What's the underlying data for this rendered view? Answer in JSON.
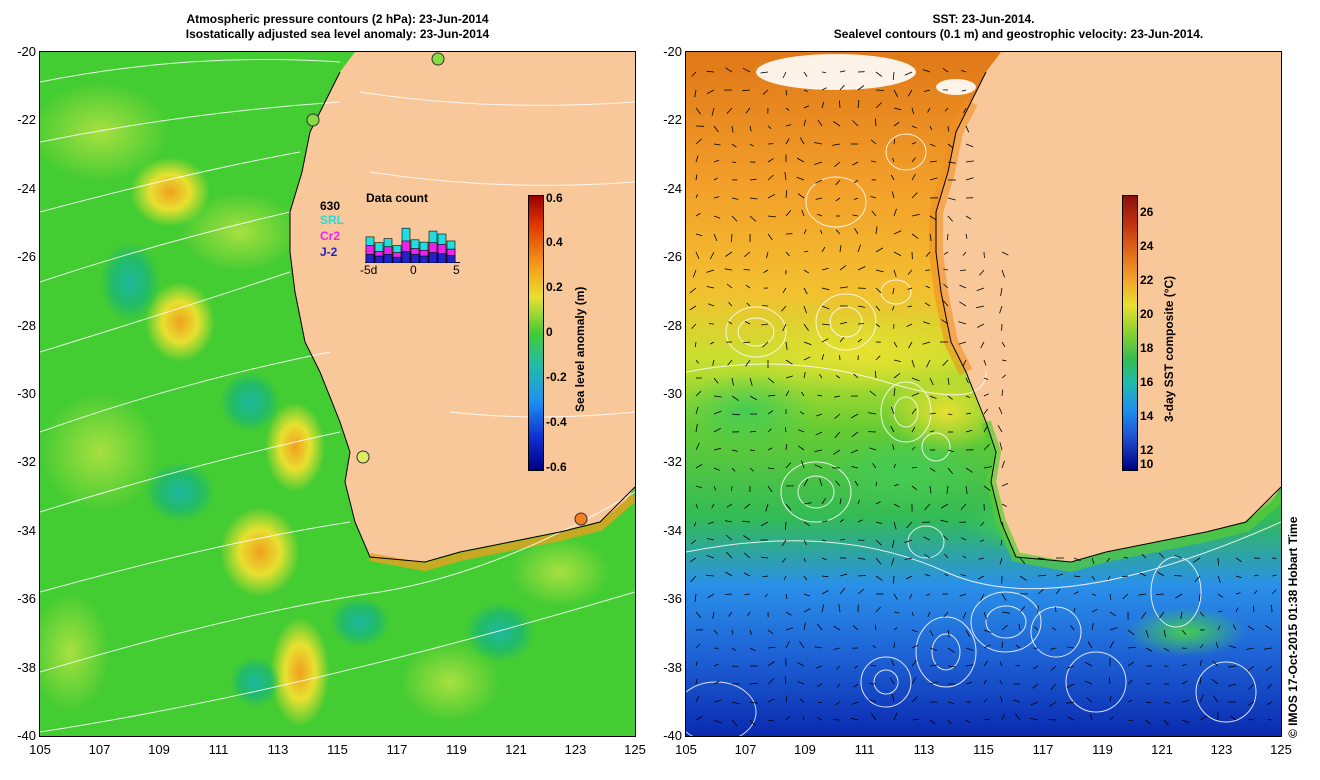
{
  "left": {
    "title_line1": "Atmospheric pressure contours (2 hPa): 23-Jun-2014",
    "title_line2": "Isostatically adjusted sea level anomaly: 23-Jun-2014",
    "colorbar": {
      "label": "Sea level anomaly (m)",
      "ticks": [
        "0.6",
        "0.4",
        "0.2",
        "0",
        "-0.2",
        "-0.4",
        "-0.6"
      ]
    },
    "inset": {
      "count": "630",
      "title": "Data count",
      "sources": [
        "SRL",
        "Cr2",
        "J-2"
      ],
      "xticks": [
        "-5d",
        "0",
        "5"
      ],
      "bars": [
        {
          "srl": 0.45,
          "cr2": 0.3,
          "j2": 0.15
        },
        {
          "srl": 0.35,
          "cr2": 0.2,
          "j2": 0.12
        },
        {
          "srl": 0.42,
          "cr2": 0.28,
          "j2": 0.15
        },
        {
          "srl": 0.3,
          "cr2": 0.18,
          "j2": 0.1
        },
        {
          "srl": 0.6,
          "cr2": 0.38,
          "j2": 0.2
        },
        {
          "srl": 0.4,
          "cr2": 0.25,
          "j2": 0.15
        },
        {
          "srl": 0.36,
          "cr2": 0.22,
          "j2": 0.12
        },
        {
          "srl": 0.55,
          "cr2": 0.35,
          "j2": 0.18
        },
        {
          "srl": 0.5,
          "cr2": 0.32,
          "j2": 0.16
        },
        {
          "srl": 0.38,
          "cr2": 0.24,
          "j2": 0.13
        }
      ]
    }
  },
  "right": {
    "title_line1": "SST: 23-Jun-2014.",
    "title_line2": "Sealevel contours (0.1 m) and geostrophic velocity: 23-Jun-2014.",
    "colorbar": {
      "label": "3-day SST composite (°C)",
      "ticks": [
        "26",
        "24",
        "22",
        "20",
        "18",
        "16",
        "14",
        "12",
        "10"
      ]
    }
  },
  "axes": {
    "y_ticks": [
      "-20",
      "-22",
      "-24",
      "-26",
      "-28",
      "-30",
      "-32",
      "-34",
      "-36",
      "-38",
      "-40"
    ],
    "x_ticks": [
      "105",
      "107",
      "109",
      "111",
      "113",
      "115",
      "117",
      "119",
      "121",
      "123",
      "125"
    ]
  },
  "credit": "© IMOS 17-Oct-2015 01:38 Hobart Time",
  "colors": {
    "land": "#f9c89a",
    "sla_green": "#33cc33",
    "sla_yellow": "#e8e838",
    "sst_orange": "#f3a02a",
    "sst_blue": "#1e63d6"
  }
}
